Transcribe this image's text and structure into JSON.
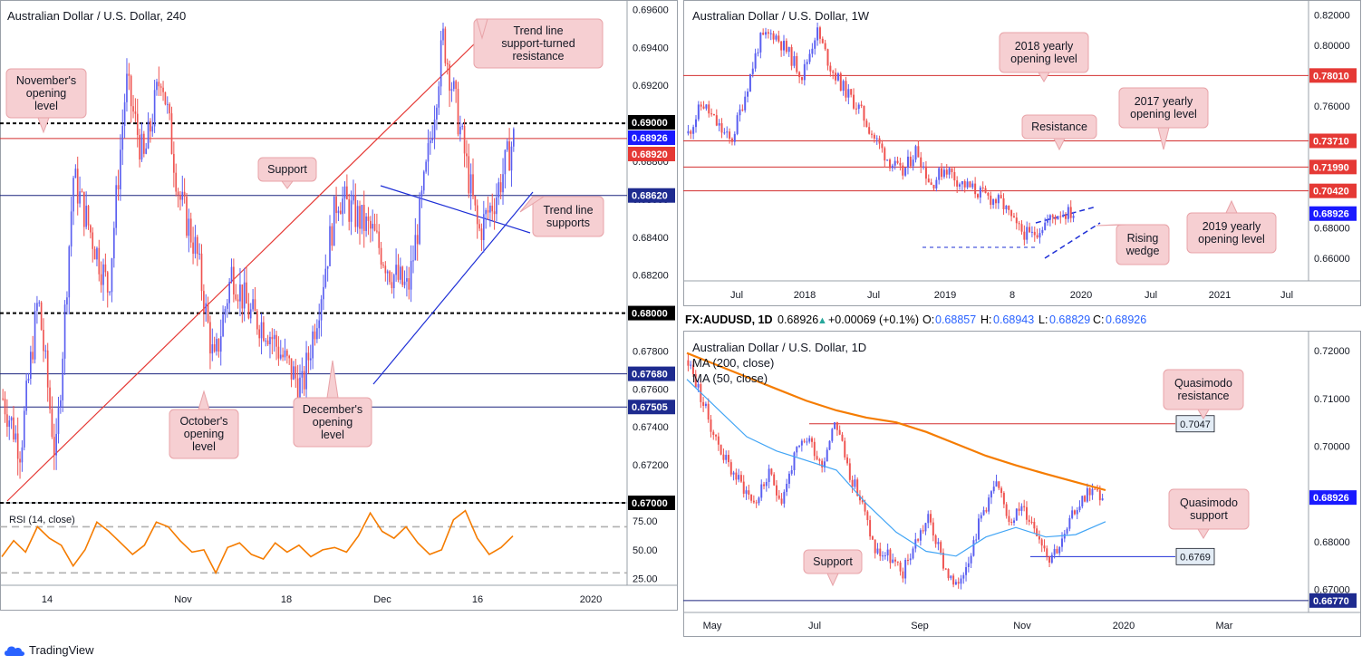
{
  "colors": {
    "up_candle": "#5a5ff0",
    "down_candle": "#ef5350",
    "resistance_line": "#d32f2f",
    "support_line": "#1a237e",
    "trend_red": "#e53935",
    "trend_blue": "#1e2fd6",
    "rsi": "#f57c00",
    "ma200": "#f57c00",
    "ma50": "#42a5f5",
    "tag_red": "#e53935",
    "tag_blue": "#1a1aff",
    "tag_dark": "#1e2b8f",
    "tag_black": "#000000"
  },
  "chart_data": [
    {
      "id": "h4",
      "type": "candlestick",
      "title": "Australian Dollar / U.S. Dollar, 240",
      "ylim": [
        0.67,
        0.6965
      ],
      "x_ticks": [
        "14",
        "Nov",
        "18",
        "Dec",
        "16",
        "2020"
      ],
      "y_ticks": [
        "0.69600",
        "0.69400",
        "0.69200",
        "0.68800",
        "0.68600",
        "0.68400",
        "0.68200",
        "0.67800",
        "0.67600",
        "0.67400",
        "0.67200"
      ],
      "price_tags": [
        {
          "label": "0.69000",
          "value": 0.69,
          "style": "black"
        },
        {
          "label": "0.68926",
          "value": 0.68926,
          "style": "blue"
        },
        {
          "label": "0.68920",
          "value": 0.6892,
          "style": "red"
        },
        {
          "label": "0.68620",
          "value": 0.6862,
          "style": "dark"
        },
        {
          "label": "0.68000",
          "value": 0.68,
          "style": "black"
        },
        {
          "label": "0.67680",
          "value": 0.6768,
          "style": "dark"
        },
        {
          "label": "0.67505",
          "value": 0.67505,
          "style": "dark"
        },
        {
          "label": "0.67000",
          "value": 0.67,
          "style": "black"
        }
      ],
      "annotations": [
        {
          "text": "November's\nopening\nlevel"
        },
        {
          "text": "Trend line\nsupport-turned\nresistance"
        },
        {
          "text": "Support"
        },
        {
          "text": "Trend line\nsupports"
        },
        {
          "text": "October's\nopening\nlevel"
        },
        {
          "text": "December's\nopening\nlevel"
        }
      ],
      "path": [
        0.6755,
        0.6728,
        0.6808,
        0.6722,
        0.6872,
        0.6842,
        0.6812,
        0.6922,
        0.688,
        0.6928,
        0.6862,
        0.6832,
        0.6772,
        0.6822,
        0.68,
        0.6792,
        0.6775,
        0.676,
        0.6808,
        0.6862,
        0.6852,
        0.6842,
        0.6822,
        0.6812,
        0.6872,
        0.6945,
        0.6895,
        0.6842,
        0.6862,
        0.6892
      ]
    },
    {
      "id": "rsi",
      "type": "line",
      "title": "RSI (14, close)",
      "ylim": [
        20,
        90
      ],
      "y_ticks": [
        "75.00",
        "50.00",
        "25.00"
      ],
      "bands": [
        70,
        30
      ],
      "values": [
        44,
        58,
        48,
        70,
        60,
        54,
        36,
        50,
        74,
        66,
        56,
        46,
        54,
        74,
        70,
        58,
        48,
        50,
        30,
        52,
        56,
        46,
        42,
        56,
        48,
        54,
        44,
        50,
        52,
        48,
        62,
        82,
        66,
        60,
        70,
        56,
        46,
        50,
        76,
        84,
        60,
        46,
        52,
        62
      ]
    },
    {
      "id": "weekly",
      "type": "candlestick",
      "title": "Australian Dollar / U.S. Dollar, 1W",
      "ylim": [
        0.645,
        0.825
      ],
      "x_ticks": [
        "Jul",
        "2018",
        "Jul",
        "2019",
        "8",
        "2020",
        "Jul",
        "2021",
        "Jul"
      ],
      "y_ticks": [
        "0.82000",
        "0.80000",
        "0.76000",
        "0.68000",
        "0.66000"
      ],
      "price_tags": [
        {
          "label": "0.78010",
          "value": 0.7801,
          "style": "red"
        },
        {
          "label": "0.73710",
          "value": 0.7371,
          "style": "red"
        },
        {
          "label": "0.71990",
          "value": 0.7199,
          "style": "red"
        },
        {
          "label": "0.70420",
          "value": 0.7042,
          "style": "red"
        },
        {
          "label": "0.68926",
          "value": 0.68926,
          "style": "blue"
        }
      ],
      "annotations": [
        {
          "text": "2018 yearly\nopening level"
        },
        {
          "text": "2017 yearly\nopening level"
        },
        {
          "text": "Resistance"
        },
        {
          "text": "2019 yearly\nopening level"
        },
        {
          "text": "Rising\nwedge"
        }
      ],
      "path": [
        0.742,
        0.762,
        0.748,
        0.736,
        0.768,
        0.803,
        0.808,
        0.795,
        0.78,
        0.81,
        0.785,
        0.77,
        0.758,
        0.74,
        0.725,
        0.715,
        0.732,
        0.708,
        0.72,
        0.71,
        0.705,
        0.7,
        0.696,
        0.68,
        0.674,
        0.683,
        0.69,
        0.6893
      ]
    },
    {
      "id": "daily",
      "type": "candlestick",
      "title": "Australian Dollar / U.S. Dollar, 1D",
      "symbol_line": {
        "symbol": "FX:AUDUSD, 1D",
        "last": "0.68926",
        "change": "+0.00069 (+0.1%)",
        "o": "0.68857",
        "h": "0.68943",
        "l": "0.68829",
        "c": "0.68926",
        "o_label": "O:",
        "h_label": "H:",
        "l_label": "L:",
        "c_label": "C:"
      },
      "ylim": [
        0.6652,
        0.724
      ],
      "x_ticks": [
        "May",
        "Jul",
        "Sep",
        "Nov",
        "2020",
        "Mar"
      ],
      "y_ticks": [
        "0.72000",
        "0.71000",
        "0.70000",
        "0.68000",
        "0.67000"
      ],
      "legend": [
        "MA (200, close)",
        "MA (50, close)"
      ],
      "price_tags": [
        {
          "label": "0.68926",
          "value": 0.68926,
          "style": "blue"
        },
        {
          "label": "0.66770",
          "value": 0.6677,
          "style": "dark"
        }
      ],
      "level_labels": [
        {
          "label": "0.7047",
          "value": 0.7047
        },
        {
          "label": "0.6769",
          "value": 0.6769
        }
      ],
      "annotations": [
        {
          "text": "Quasimodo\nresistance"
        },
        {
          "text": "Quasimodo\nsupport"
        },
        {
          "text": "Support"
        }
      ],
      "path": [
        0.718,
        0.71,
        0.702,
        0.696,
        0.692,
        0.688,
        0.694,
        0.689,
        0.698,
        0.702,
        0.696,
        0.706,
        0.695,
        0.688,
        0.678,
        0.677,
        0.673,
        0.68,
        0.685,
        0.676,
        0.67,
        0.677,
        0.686,
        0.692,
        0.685,
        0.687,
        0.683,
        0.677,
        0.68,
        0.687,
        0.691,
        0.6893
      ],
      "ma200": [
        0.7195,
        0.717,
        0.7145,
        0.712,
        0.7095,
        0.7075,
        0.706,
        0.705,
        0.703,
        0.7005,
        0.698,
        0.696,
        0.6942,
        0.6925,
        0.6908
      ],
      "ma50": [
        0.714,
        0.708,
        0.702,
        0.699,
        0.697,
        0.695,
        0.688,
        0.682,
        0.678,
        0.677,
        0.681,
        0.683,
        0.681,
        0.6815,
        0.6842
      ]
    }
  ],
  "footer": {
    "brand": "TradingView"
  }
}
